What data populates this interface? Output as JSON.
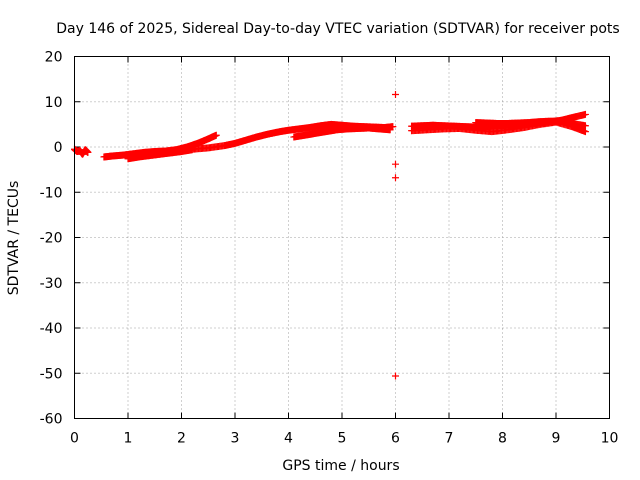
{
  "chart_data": {
    "type": "scatter",
    "title": "Day 146 of 2025, Sidereal Day-to-day VTEC variation (SDTVAR) for receiver pots",
    "xlabel": "GPS time / hours",
    "ylabel": "SDTVAR / TECUs",
    "xlim": [
      0,
      10
    ],
    "ylim": [
      -60,
      20
    ],
    "xticks": [
      "0",
      "1",
      "2",
      "3",
      "4",
      "5",
      "6",
      "7",
      "8",
      "9",
      "10"
    ],
    "yticks": [
      "20",
      "10",
      "0",
      "-10",
      "-20",
      "-30",
      "-40",
      "-50",
      "-60"
    ],
    "grid": true,
    "marker": "+",
    "color": "#ff0000",
    "series": [
      {
        "name": "segment-a",
        "x": [
          0.0,
          0.05,
          0.1,
          0.15,
          0.2,
          0.25
        ],
        "y": [
          -0.5,
          -1.0,
          -0.8,
          -1.6,
          -0.6,
          -1.2
        ]
      },
      {
        "name": "segment-b",
        "x": [
          0.55,
          0.7,
          0.9,
          1.1,
          1.3,
          1.5,
          1.7,
          1.9,
          2.1,
          2.3,
          2.5,
          2.65
        ],
        "y": [
          -2.2,
          -2.0,
          -1.8,
          -1.5,
          -1.2,
          -1.0,
          -0.9,
          -0.6,
          0.0,
          0.8,
          1.8,
          2.6
        ]
      },
      {
        "name": "segment-c",
        "x": [
          1.0,
          1.2,
          1.4,
          1.6,
          1.8,
          2.0,
          2.2
        ],
        "y": [
          -2.6,
          -2.2,
          -1.9,
          -1.6,
          -1.3,
          -1.0,
          -0.6
        ]
      },
      {
        "name": "segment-d",
        "x": [
          2.2,
          2.5,
          2.8,
          3.0,
          3.2,
          3.4,
          3.6,
          3.8,
          4.0,
          4.2,
          4.4,
          4.6,
          4.8,
          5.0,
          5.2,
          5.4,
          5.6,
          5.8,
          5.95
        ],
        "y": [
          -0.5,
          -0.2,
          0.3,
          0.8,
          1.5,
          2.2,
          2.8,
          3.3,
          3.7,
          4.0,
          4.3,
          4.7,
          5.0,
          4.8,
          4.6,
          4.5,
          4.4,
          4.3,
          4.5
        ]
      },
      {
        "name": "segment-e",
        "x": [
          4.1,
          4.3,
          4.5,
          4.7,
          4.9,
          5.1,
          5.3,
          5.5,
          5.7,
          5.9
        ],
        "y": [
          2.2,
          2.6,
          3.0,
          3.4,
          3.8,
          4.0,
          4.1,
          4.2,
          4.0,
          3.8
        ]
      },
      {
        "name": "outliers",
        "x": [
          6.0,
          6.0,
          6.0,
          6.0
        ],
        "y": [
          11.6,
          -3.8,
          -6.8,
          -50.6
        ]
      },
      {
        "name": "segment-f",
        "x": [
          6.3,
          6.5,
          6.7,
          6.9,
          7.1,
          7.3,
          7.5,
          7.7,
          7.9,
          8.1,
          8.3,
          8.5,
          8.7,
          8.9,
          9.1,
          9.3,
          9.55
        ],
        "y": [
          4.6,
          4.7,
          4.8,
          4.7,
          4.6,
          4.5,
          4.4,
          4.5,
          4.7,
          4.8,
          4.9,
          5.1,
          5.3,
          5.6,
          5.9,
          6.5,
          7.2
        ]
      },
      {
        "name": "segment-g",
        "x": [
          6.3,
          6.6,
          6.9,
          7.2,
          7.5,
          7.8,
          8.1,
          8.4,
          8.7,
          9.0,
          9.3,
          9.55
        ],
        "y": [
          3.6,
          3.8,
          4.0,
          4.1,
          3.7,
          3.4,
          3.8,
          4.3,
          5.0,
          5.5,
          4.5,
          3.4
        ]
      },
      {
        "name": "segment-h",
        "x": [
          7.5,
          7.7,
          7.9,
          8.1,
          8.3,
          8.5,
          8.7,
          8.9,
          9.1,
          9.3,
          9.55
        ],
        "y": [
          5.4,
          5.3,
          5.2,
          5.2,
          5.3,
          5.4,
          5.6,
          5.7,
          5.6,
          5.2,
          4.7
        ]
      }
    ]
  }
}
